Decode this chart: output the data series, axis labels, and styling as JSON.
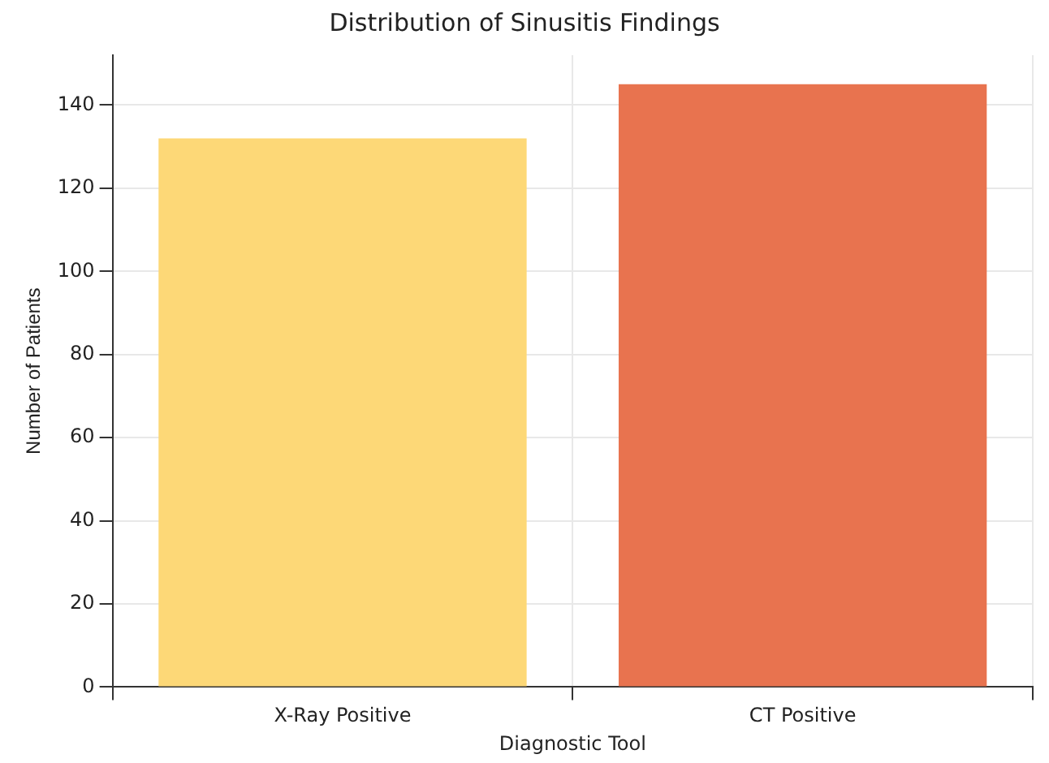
{
  "chart_data": {
    "type": "bar",
    "title": "Distribution of Sinusitis Findings",
    "xlabel": "Diagnostic Tool",
    "ylabel": "Number of Patients",
    "categories": [
      "X-Ray Positive",
      "CT Positive"
    ],
    "values": [
      132,
      145
    ],
    "colors": [
      "#fdd877",
      "#e8734f"
    ],
    "ylim": [
      0,
      152
    ],
    "yticks": [
      0,
      20,
      40,
      60,
      80,
      100,
      120,
      140
    ],
    "grid": true
  }
}
